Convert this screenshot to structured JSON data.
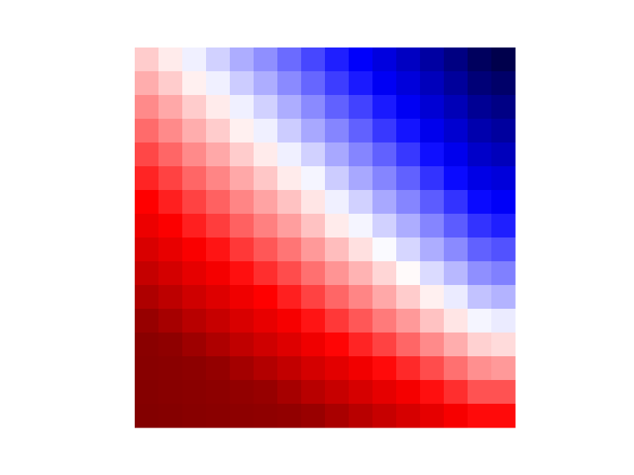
{
  "chart_data": {
    "type": "heatmap",
    "vlim": [
      -1,
      1
    ],
    "colormap": [
      "#00004c",
      "#0000ff",
      "#ffffff",
      "#ff0000",
      "#800000"
    ],
    "values": [
      [
        0.1,
        0.04,
        -0.03,
        -0.09,
        -0.16,
        -0.22,
        -0.29,
        -0.36,
        -0.44,
        -0.51,
        -0.59,
        -0.67,
        -0.76,
        -0.85,
        -0.95,
        -1.0
      ],
      [
        0.16,
        0.1,
        0.03,
        -0.03,
        -0.1,
        -0.16,
        -0.23,
        -0.3,
        -0.38,
        -0.45,
        -0.53,
        -0.6,
        -0.69,
        -0.78,
        -0.88,
        -0.92
      ],
      [
        0.23,
        0.17,
        0.1,
        0.04,
        -0.03,
        -0.09,
        -0.16,
        -0.23,
        -0.31,
        -0.37,
        -0.45,
        -0.53,
        -0.62,
        -0.7,
        -0.8,
        -0.84
      ],
      [
        0.29,
        0.23,
        0.16,
        0.1,
        0.03,
        -0.03,
        -0.1,
        -0.17,
        -0.24,
        -0.31,
        -0.39,
        -0.46,
        -0.55,
        -0.63,
        -0.73,
        -0.77
      ],
      [
        0.36,
        0.3,
        0.23,
        0.17,
        0.1,
        0.04,
        -0.03,
        -0.09,
        -0.17,
        -0.24,
        -0.31,
        -0.39,
        -0.47,
        -0.55,
        -0.65,
        -0.69
      ],
      [
        0.43,
        0.37,
        0.3,
        0.24,
        0.17,
        0.11,
        0.04,
        -0.02,
        -0.1,
        -0.17,
        -0.24,
        -0.31,
        -0.4,
        -0.48,
        -0.57,
        -0.6
      ],
      [
        0.5,
        0.44,
        0.37,
        0.31,
        0.24,
        0.18,
        0.12,
        0.05,
        -0.03,
        -0.09,
        -0.17,
        -0.24,
        -0.32,
        -0.4,
        -0.48,
        -0.52
      ],
      [
        0.57,
        0.51,
        0.44,
        0.38,
        0.31,
        0.25,
        0.19,
        0.12,
        0.04,
        -0.02,
        -0.09,
        -0.16,
        -0.24,
        -0.32,
        -0.4,
        -0.44
      ],
      [
        0.65,
        0.59,
        0.52,
        0.46,
        0.39,
        0.33,
        0.27,
        0.2,
        0.13,
        0.06,
        -0.01,
        -0.08,
        -0.16,
        -0.23,
        -0.31,
        -0.34
      ],
      [
        0.73,
        0.67,
        0.6,
        0.54,
        0.47,
        0.41,
        0.35,
        0.28,
        0.21,
        0.15,
        0.08,
        0.01,
        -0.07,
        -0.14,
        -0.22,
        -0.25
      ],
      [
        0.82,
        0.76,
        0.69,
        0.63,
        0.56,
        0.5,
        0.44,
        0.37,
        0.3,
        0.24,
        0.17,
        0.1,
        0.03,
        -0.04,
        -0.12,
        -0.15
      ],
      [
        0.91,
        0.85,
        0.78,
        0.72,
        0.65,
        0.59,
        0.53,
        0.46,
        0.39,
        0.33,
        0.26,
        0.2,
        0.12,
        0.05,
        -0.02,
        -0.04
      ],
      [
        0.96,
        0.94,
        0.88,
        0.82,
        0.75,
        0.69,
        0.63,
        0.56,
        0.49,
        0.43,
        0.37,
        0.3,
        0.23,
        0.16,
        0.09,
        0.07
      ],
      [
        0.97,
        0.96,
        0.95,
        0.92,
        0.86,
        0.8,
        0.74,
        0.67,
        0.61,
        0.55,
        0.48,
        0.42,
        0.35,
        0.28,
        0.22,
        0.2
      ],
      [
        0.98,
        0.97,
        0.96,
        0.95,
        0.93,
        0.91,
        0.85,
        0.78,
        0.72,
        0.66,
        0.6,
        0.54,
        0.47,
        0.41,
        0.34,
        0.34
      ],
      [
        0.99,
        0.98,
        0.97,
        0.96,
        0.95,
        0.94,
        0.93,
        0.9,
        0.84,
        0.78,
        0.72,
        0.66,
        0.6,
        0.53,
        0.48,
        0.48
      ]
    ]
  }
}
